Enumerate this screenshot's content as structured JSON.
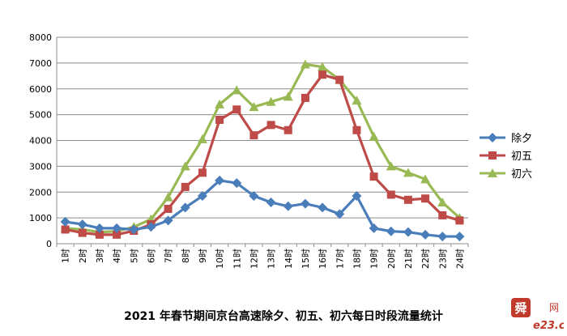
{
  "chart_data": {
    "type": "line",
    "title": "2021 年春节期间京台高速除夕、初五、初六每日时段流量统计",
    "categories": [
      "1时",
      "2时",
      "3时",
      "4时",
      "5时",
      "6时",
      "7时",
      "8时",
      "9时",
      "10时",
      "11时",
      "12时",
      "13时",
      "14时",
      "15时",
      "16时",
      "17时",
      "18时",
      "19时",
      "20时",
      "21时",
      "22时",
      "23时",
      "24时"
    ],
    "yticks": [
      "0",
      "1000",
      "2000",
      "3000",
      "4000",
      "5000",
      "6000",
      "7000",
      "8000"
    ],
    "ylim": [
      0,
      8000
    ],
    "grid": true,
    "legend_position": "right",
    "series": [
      {
        "name": "除夕",
        "color": "#4a7ebb",
        "marker": "diamond",
        "values": [
          850,
          750,
          600,
          600,
          550,
          650,
          900,
          1400,
          1850,
          2450,
          2350,
          1850,
          1600,
          1450,
          1550,
          1400,
          1150,
          1850,
          600,
          480,
          450,
          350,
          280,
          280
        ]
      },
      {
        "name": "初五",
        "color": "#be4b48",
        "marker": "square",
        "values": [
          550,
          420,
          350,
          350,
          500,
          750,
          1350,
          2200,
          2750,
          4800,
          5200,
          4200,
          4600,
          4400,
          5650,
          6550,
          6350,
          4400,
          2600,
          1900,
          1700,
          1750,
          1100,
          900
        ]
      },
      {
        "name": "初六",
        "color": "#98b954",
        "marker": "triangle",
        "values": [
          600,
          550,
          450,
          480,
          650,
          950,
          1800,
          3000,
          4050,
          5400,
          5950,
          5300,
          5500,
          5700,
          6950,
          6850,
          6350,
          5550,
          4150,
          3000,
          2750,
          2500,
          1600,
          1000
        ]
      }
    ]
  },
  "watermark": {
    "text": "e23",
    "suffix": ".cn",
    "cn": "网"
  }
}
